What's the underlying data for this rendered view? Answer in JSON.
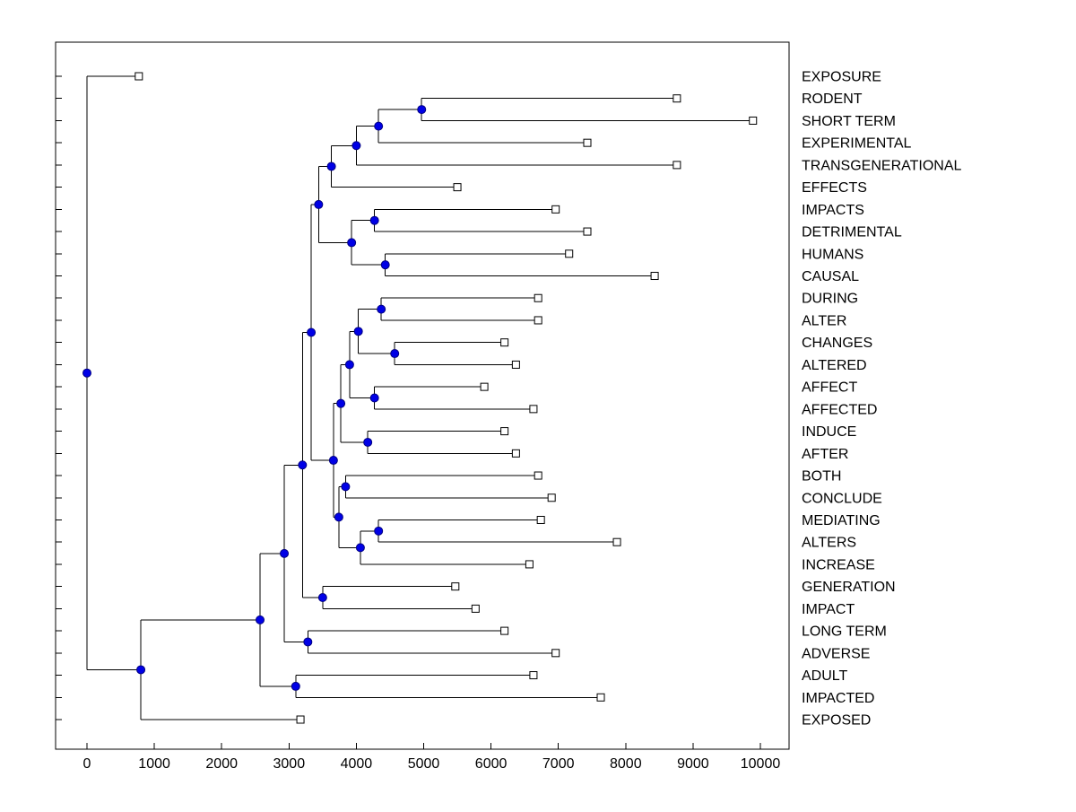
{
  "figure": {
    "background": "#FFFFFF"
  },
  "chart_data": {
    "type": "dendrogram",
    "title": "",
    "orientation": "horizontal-left-root",
    "x_axis": {
      "tick_values": [
        0,
        1000,
        2000,
        3000,
        4000,
        5000,
        6000,
        7000,
        8000,
        9000,
        10000
      ],
      "tick_labels": [
        "0",
        "1000",
        "2000",
        "3000",
        "4000",
        "5000",
        "6000",
        "7000",
        "8000",
        "9000",
        "10000"
      ],
      "xlim": [
        -470,
        10430
      ]
    },
    "leaf_labels": [
      "EXPOSURE",
      "RODENT",
      "SHORT TERM",
      "EXPERIMENTAL",
      "TRANSGENERATIONAL",
      "EFFECTS",
      "IMPACTS",
      "DETRIMENTAL",
      "HUMANS",
      "CAUSAL",
      "DURING",
      "ALTER",
      "CHANGES",
      "ALTERED",
      "AFFECT",
      "AFFECTED",
      "INDUCE",
      "AFTER",
      "BOTH",
      "CONCLUDE",
      "MEDIATING",
      "ALTERS",
      "INCREASE",
      "GENERATION",
      "IMPACT",
      "LONG TERM",
      "ADVERSE",
      "ADULT",
      "IMPACTED",
      "EXPOSED"
    ],
    "style": {
      "branch_color": "#000000",
      "node_marker_fill": "#0000E6",
      "node_marker_edge": "#000080",
      "leaf_marker_fill": "#FFFFFF",
      "leaf_marker_edge": "#000000"
    },
    "tree": {
      "x": 0,
      "children": [
        {
          "label": "EXPOSURE",
          "x": 770
        },
        {
          "x": 800,
          "children": [
            {
              "x": 2570,
              "children": [
                {
                  "x": 2930,
                  "children": [
                    {
                      "x": 3200,
                      "children": [
                        {
                          "x": 3330,
                          "children": [
                            {
                              "x": 3440,
                              "children": [
                                {
                                  "x": 3630,
                                  "children": [
                                    {
                                      "x": 4000,
                                      "children": [
                                        {
                                          "x": 4330,
                                          "children": [
                                            {
                                              "x": 4970,
                                              "children": [
                                                {
                                                  "label": "RODENT",
                                                  "x": 8760
                                                },
                                                {
                                                  "label": "SHORT TERM",
                                                  "x": 9890
                                                }
                                              ]
                                            },
                                            {
                                              "label": "EXPERIMENTAL",
                                              "x": 7430
                                            }
                                          ]
                                        },
                                        {
                                          "label": "TRANSGENERATIONAL",
                                          "x": 8760
                                        }
                                      ]
                                    },
                                    {
                                      "label": "EFFECTS",
                                      "x": 5500
                                    }
                                  ]
                                },
                                {
                                  "x": 3930,
                                  "children": [
                                    {
                                      "x": 4270,
                                      "children": [
                                        {
                                          "label": "IMPACTS",
                                          "x": 6960
                                        },
                                        {
                                          "label": "DETRIMENTAL",
                                          "x": 7430
                                        }
                                      ]
                                    },
                                    {
                                      "x": 4430,
                                      "children": [
                                        {
                                          "label": "HUMANS",
                                          "x": 7160
                                        },
                                        {
                                          "label": "CAUSAL",
                                          "x": 8430
                                        }
                                      ]
                                    }
                                  ]
                                }
                              ]
                            },
                            {
                              "x": 3660,
                              "children": [
                                {
                                  "x": 3770,
                                  "children": [
                                    {
                                      "x": 3900,
                                      "children": [
                                        {
                                          "x": 4030,
                                          "children": [
                                            {
                                              "x": 4370,
                                              "children": [
                                                {
                                                  "label": "DURING",
                                                  "x": 6700
                                                },
                                                {
                                                  "label": "ALTER",
                                                  "x": 6700
                                                }
                                              ]
                                            },
                                            {
                                              "x": 4570,
                                              "children": [
                                                {
                                                  "label": "CHANGES",
                                                  "x": 6200
                                                },
                                                {
                                                  "label": "ALTERED",
                                                  "x": 6370
                                                }
                                              ]
                                            }
                                          ]
                                        },
                                        {
                                          "x": 4270,
                                          "children": [
                                            {
                                              "label": "AFFECT",
                                              "x": 5900
                                            },
                                            {
                                              "label": "AFFECTED",
                                              "x": 6630
                                            }
                                          ]
                                        }
                                      ]
                                    },
                                    {
                                      "x": 4170,
                                      "children": [
                                        {
                                          "label": "INDUCE",
                                          "x": 6200
                                        },
                                        {
                                          "label": "AFTER",
                                          "x": 6370
                                        }
                                      ]
                                    }
                                  ]
                                },
                                {
                                  "x": 3740,
                                  "children": [
                                    {
                                      "x": 3840,
                                      "children": [
                                        {
                                          "label": "BOTH",
                                          "x": 6700
                                        },
                                        {
                                          "label": "CONCLUDE",
                                          "x": 6900
                                        }
                                      ]
                                    },
                                    {
                                      "x": 4060,
                                      "children": [
                                        {
                                          "x": 4330,
                                          "children": [
                                            {
                                              "label": "MEDIATING",
                                              "x": 6740
                                            },
                                            {
                                              "label": "ALTERS",
                                              "x": 7870
                                            }
                                          ]
                                        },
                                        {
                                          "label": "INCREASE",
                                          "x": 6570
                                        }
                                      ]
                                    }
                                  ]
                                }
                              ]
                            }
                          ]
                        },
                        {
                          "x": 3500,
                          "children": [
                            {
                              "label": "GENERATION",
                              "x": 5470
                            },
                            {
                              "label": "IMPACT",
                              "x": 5770
                            }
                          ]
                        }
                      ]
                    },
                    {
                      "x": 3280,
                      "children": [
                        {
                          "label": "LONG TERM",
                          "x": 6200
                        },
                        {
                          "label": "ADVERSE",
                          "x": 6960
                        }
                      ]
                    }
                  ]
                },
                {
                  "x": 3100,
                  "children": [
                    {
                      "label": "ADULT",
                      "x": 6630
                    },
                    {
                      "label": "IMPACTED",
                      "x": 7630
                    }
                  ]
                }
              ]
            },
            {
              "label": "EXPOSED",
              "x": 3170
            }
          ]
        }
      ]
    }
  }
}
